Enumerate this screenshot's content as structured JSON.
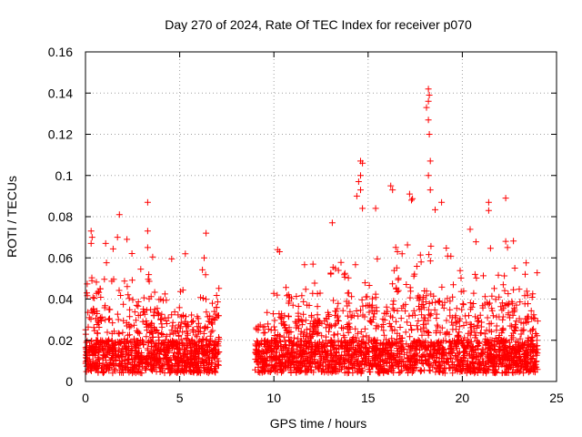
{
  "chart_data": {
    "type": "scatter",
    "title": "Day 270 of 2024, Rate Of TEC Index for receiver p070",
    "xlabel": "GPS time / hours",
    "ylabel": "ROTI / TECUs",
    "xlim": [
      0,
      25
    ],
    "ylim": [
      0,
      0.16
    ],
    "xticks": [
      0,
      5,
      10,
      15,
      20,
      25
    ],
    "yticks": [
      0,
      0.02,
      0.04,
      0.06,
      0.08,
      0.1,
      0.12,
      0.14,
      0.16
    ],
    "xtick_labels": [
      "0",
      "5",
      "10",
      "15",
      "20",
      "25"
    ],
    "ytick_labels": [
      "0",
      "0.02",
      "0.04",
      "0.06",
      "0.08",
      "0.1",
      "0.12",
      "0.14",
      "0.16"
    ],
    "grid": true,
    "marker": "plus",
    "color": "#ff0000",
    "data_gap_hours": [
      7.1,
      9.0
    ],
    "series": [
      {
        "name": "ROTI",
        "notable_points": [
          {
            "x": 0.3,
            "y": 0.073
          },
          {
            "x": 0.35,
            "y": 0.07
          },
          {
            "x": 0.3,
            "y": 0.067
          },
          {
            "x": 1.8,
            "y": 0.081
          },
          {
            "x": 1.7,
            "y": 0.07
          },
          {
            "x": 2.2,
            "y": 0.069
          },
          {
            "x": 3.3,
            "y": 0.087
          },
          {
            "x": 3.3,
            "y": 0.073
          },
          {
            "x": 3.3,
            "y": 0.065
          },
          {
            "x": 5.3,
            "y": 0.062
          },
          {
            "x": 6.4,
            "y": 0.072
          },
          {
            "x": 6.3,
            "y": 0.06
          },
          {
            "x": 10.2,
            "y": 0.064
          },
          {
            "x": 10.3,
            "y": 0.063
          },
          {
            "x": 13.1,
            "y": 0.077
          },
          {
            "x": 14.6,
            "y": 0.107
          },
          {
            "x": 14.7,
            "y": 0.106
          },
          {
            "x": 14.6,
            "y": 0.1
          },
          {
            "x": 14.5,
            "y": 0.097
          },
          {
            "x": 14.6,
            "y": 0.093
          },
          {
            "x": 14.4,
            "y": 0.09
          },
          {
            "x": 14.7,
            "y": 0.084
          },
          {
            "x": 15.4,
            "y": 0.084
          },
          {
            "x": 16.2,
            "y": 0.095
          },
          {
            "x": 16.3,
            "y": 0.093
          },
          {
            "x": 17.2,
            "y": 0.091
          },
          {
            "x": 17.3,
            "y": 0.088
          },
          {
            "x": 18.2,
            "y": 0.142
          },
          {
            "x": 18.25,
            "y": 0.139
          },
          {
            "x": 18.2,
            "y": 0.136
          },
          {
            "x": 18.1,
            "y": 0.133
          },
          {
            "x": 18.2,
            "y": 0.127
          },
          {
            "x": 18.25,
            "y": 0.12
          },
          {
            "x": 18.3,
            "y": 0.107
          },
          {
            "x": 18.2,
            "y": 0.1
          },
          {
            "x": 18.3,
            "y": 0.093
          },
          {
            "x": 18.9,
            "y": 0.087
          },
          {
            "x": 21.4,
            "y": 0.087
          },
          {
            "x": 21.4,
            "y": 0.083
          },
          {
            "x": 22.3,
            "y": 0.089
          },
          {
            "x": 22.3,
            "y": 0.068
          },
          {
            "x": 22.4,
            "y": 0.065
          }
        ]
      }
    ]
  }
}
